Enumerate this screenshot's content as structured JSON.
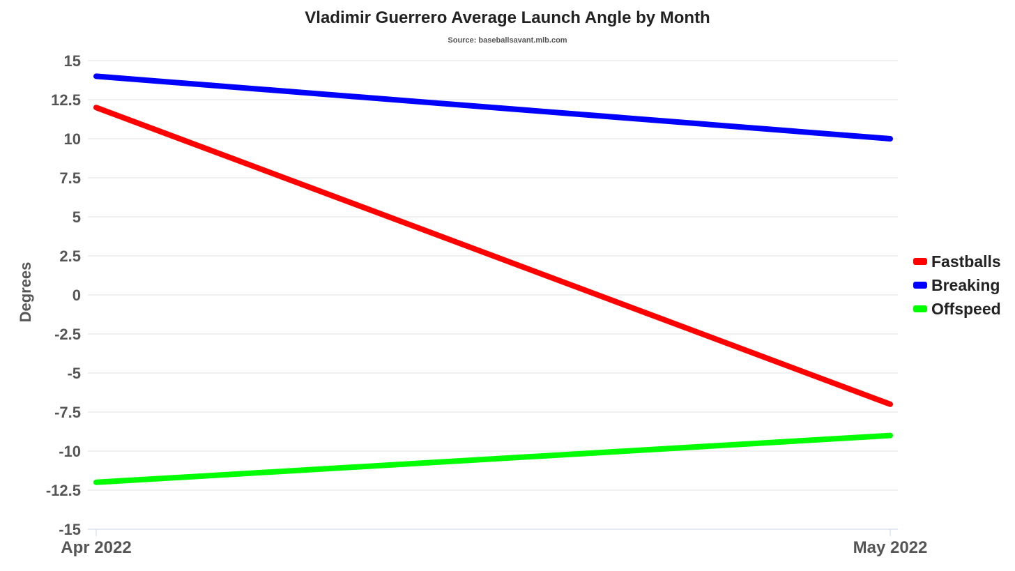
{
  "chart_data": {
    "type": "line",
    "title": "Vladimir Guerrero Average Launch Angle by Month",
    "subtitle": "Source: baseballsavant.mlb.com",
    "xlabel": "",
    "ylabel": "Degrees",
    "categories": [
      "Apr 2022",
      "May 2022"
    ],
    "ylim": [
      -15,
      15
    ],
    "yticks": [
      15,
      12.5,
      10,
      7.5,
      5,
      2.5,
      0,
      -2.5,
      -5,
      -7.5,
      -10,
      -12.5,
      -15
    ],
    "grid": true,
    "legend_position": "right",
    "series": [
      {
        "name": "Fastballs",
        "values": [
          12,
          -7
        ],
        "color": "#ff0000"
      },
      {
        "name": "Breaking",
        "values": [
          14,
          10
        ],
        "color": "#0000ff"
      },
      {
        "name": "Offspeed",
        "values": [
          -12,
          -9
        ],
        "color": "#00ff00"
      }
    ]
  }
}
